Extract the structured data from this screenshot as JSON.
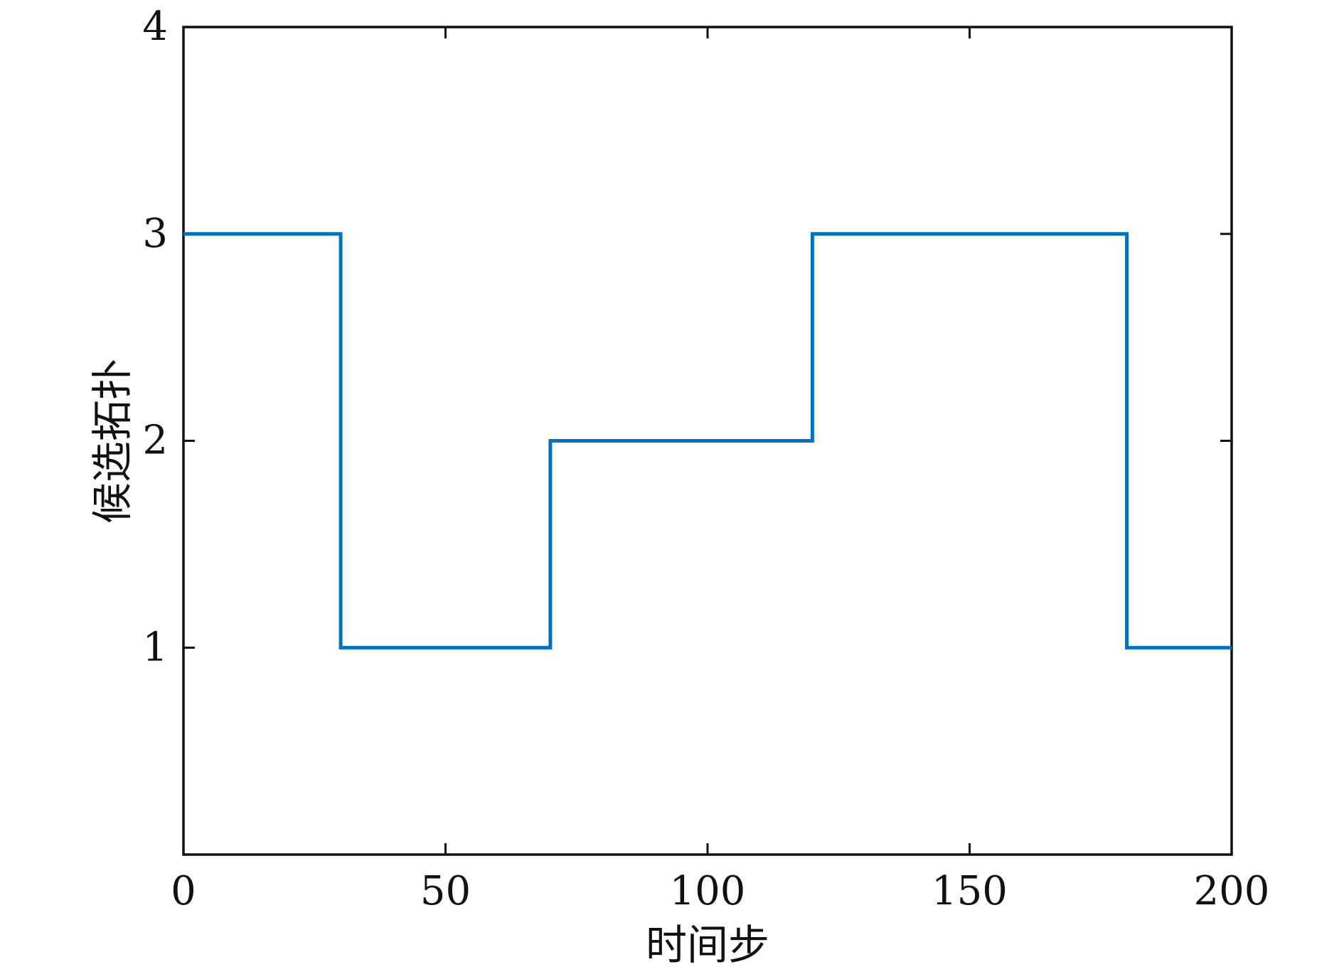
{
  "chart_data": {
    "type": "line",
    "step": true,
    "title": "",
    "xlabel": "时间步",
    "ylabel": "候选拓扑",
    "xlim": [
      0,
      200
    ],
    "ylim": [
      0,
      4
    ],
    "xticks": [
      0,
      50,
      100,
      150,
      200
    ],
    "xtick_labels": [
      "0",
      "50",
      "100",
      "150",
      "200"
    ],
    "yticks": [
      1,
      2,
      3,
      4
    ],
    "ytick_labels": [
      "1",
      "2",
      "3",
      "4"
    ],
    "grid": false,
    "series": [
      {
        "color": "#0072BD",
        "x": [
          0,
          30,
          30,
          70,
          70,
          120,
          120,
          180,
          180,
          200
        ],
        "y": [
          3,
          3,
          1,
          1,
          2,
          2,
          3,
          3,
          1,
          1
        ]
      }
    ]
  }
}
